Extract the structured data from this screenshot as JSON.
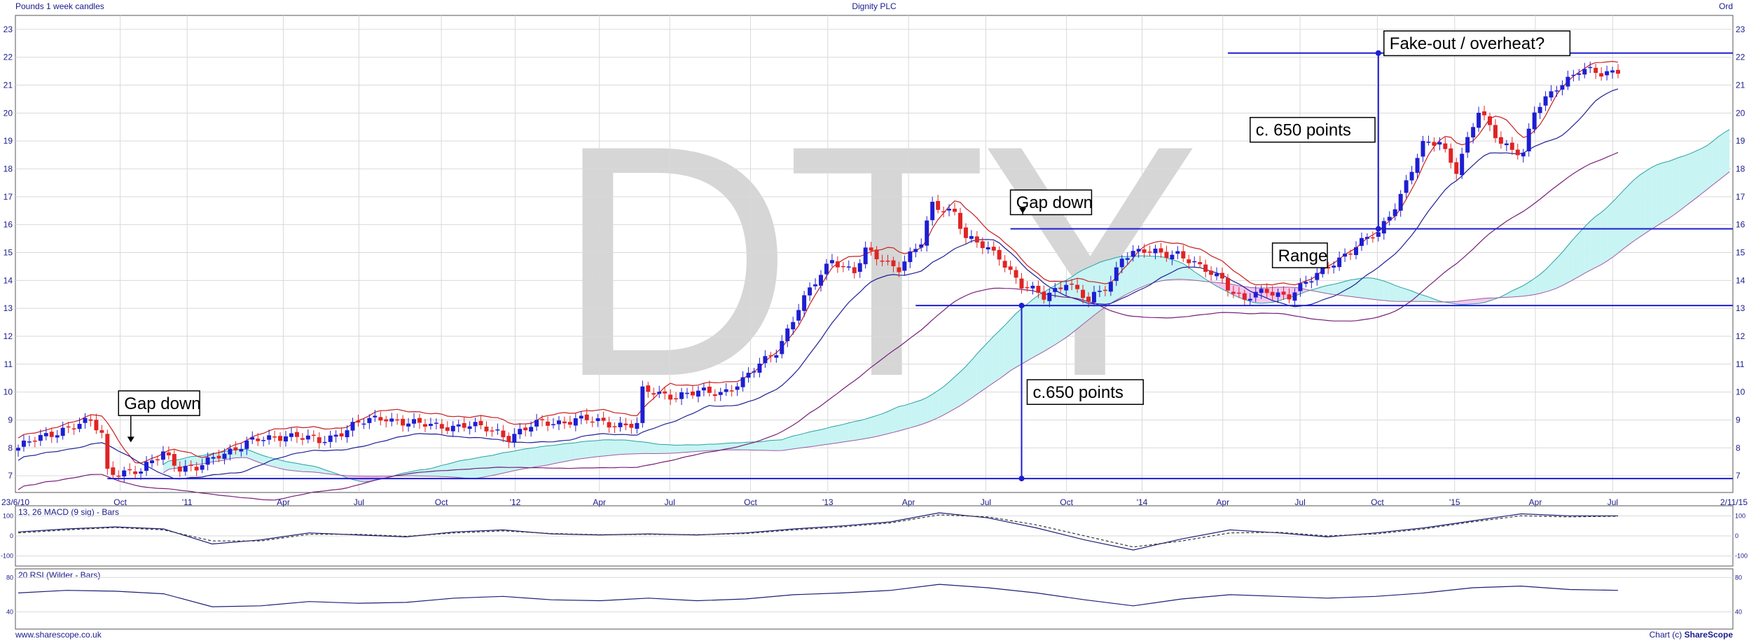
{
  "header": {
    "left": "Pounds 1 week candles",
    "center": "Dignity PLC",
    "right": "Ord"
  },
  "footer": {
    "left": "www.sharescope.co.uk",
    "right_prefix": "Chart (c) ",
    "right_brand": "ShareScope"
  },
  "watermark": "DTY",
  "colors": {
    "up": "#1e1ed2",
    "down": "#e02424",
    "axis": "#1a1a8c",
    "grid": "#d9d9d9",
    "level": "#1e1ed2",
    "cloud_bull": "#c8f4f4",
    "cloud_bear": "#f4c8ef",
    "ma_fast": "#c81e1e",
    "ma_mid": "#1e1e96",
    "ma_slow": "#781e78"
  },
  "chart_data": [
    {
      "type": "candlestick",
      "title": "Dignity PLC",
      "yaxis_ticks": [
        7,
        8,
        9,
        10,
        11,
        12,
        13,
        14,
        15,
        16,
        17,
        18,
        19,
        20,
        21,
        22,
        23
      ],
      "ylim": [
        6.4,
        23.5
      ],
      "xaxis_ticks": [
        "23/6/10",
        "Oct",
        "'11",
        "Apr",
        "Jul",
        "Oct",
        "'12",
        "Apr",
        "Jul",
        "Oct",
        "'13",
        "Apr",
        "Jul",
        "Oct",
        "'14",
        "Apr",
        "Jul",
        "Oct",
        "'15",
        "Apr",
        "Jul",
        "2/11/15"
      ],
      "grid": true,
      "close_keypoints": [
        [
          0,
          8.0
        ],
        [
          8,
          8.7
        ],
        [
          13,
          8.9
        ],
        [
          15,
          8.5
        ],
        [
          16,
          7.2
        ],
        [
          22,
          7.1
        ],
        [
          26,
          7.9
        ],
        [
          29,
          7.3
        ],
        [
          32,
          7.2
        ],
        [
          36,
          7.8
        ],
        [
          42,
          8.2
        ],
        [
          48,
          8.5
        ],
        [
          54,
          8.2
        ],
        [
          60,
          8.8
        ],
        [
          66,
          9.1
        ],
        [
          72,
          8.8
        ],
        [
          80,
          8.8
        ],
        [
          86,
          8.6
        ],
        [
          88,
          8.4
        ],
        [
          94,
          8.9
        ],
        [
          100,
          9.0
        ],
        [
          106,
          8.9
        ],
        [
          111,
          8.8
        ],
        [
          112,
          10.0
        ],
        [
          118,
          9.9
        ],
        [
          126,
          10.0
        ],
        [
          130,
          10.4
        ],
        [
          136,
          11.5
        ],
        [
          140,
          13.0
        ],
        [
          146,
          14.8
        ],
        [
          150,
          14.3
        ],
        [
          152,
          15.0
        ],
        [
          158,
          14.5
        ],
        [
          162,
          15.3
        ],
        [
          164,
          16.7
        ],
        [
          168,
          16.5
        ],
        [
          170,
          15.5
        ],
        [
          176,
          14.9
        ],
        [
          180,
          13.8
        ],
        [
          184,
          13.4
        ],
        [
          188,
          14.0
        ],
        [
          192,
          13.2
        ],
        [
          196,
          14.0
        ],
        [
          198,
          14.9
        ],
        [
          202,
          15.0
        ],
        [
          208,
          15.0
        ],
        [
          212,
          14.4
        ],
        [
          216,
          14.1
        ],
        [
          218,
          13.6
        ],
        [
          220,
          13.3
        ],
        [
          224,
          13.6
        ],
        [
          228,
          13.5
        ],
        [
          232,
          14.0
        ],
        [
          236,
          14.7
        ],
        [
          240,
          15.2
        ],
        [
          244,
          15.7
        ],
        [
          248,
          17.1
        ],
        [
          252,
          18.8
        ],
        [
          255,
          19.0
        ],
        [
          258,
          18.0
        ],
        [
          262,
          20.0
        ],
        [
          266,
          19.0
        ],
        [
          270,
          18.5
        ],
        [
          272,
          20.0
        ],
        [
          276,
          21.0
        ],
        [
          280,
          21.5
        ],
        [
          284,
          21.4
        ],
        [
          287,
          21.6
        ]
      ],
      "last_week_index": 287,
      "moving_averages": [
        {
          "name": "fast",
          "offset": 0.35,
          "lag": 5
        },
        {
          "name": "mid",
          "offset": -0.45,
          "lag": 12
        },
        {
          "name": "slow",
          "offset": -1.5,
          "lag": 30
        }
      ],
      "levels": [
        {
          "y": 22.15,
          "from_week": 217
        },
        {
          "y": 15.85,
          "from_week": 178
        },
        {
          "y": 13.1,
          "from_week": 161
        },
        {
          "y": 6.9,
          "from_week": 16
        }
      ],
      "measures": [
        {
          "week": 180,
          "from": 6.9,
          "to": 13.1
        },
        {
          "week": 244,
          "from": 15.85,
          "to": 22.15
        }
      ],
      "annotations": [
        {
          "id": "gap-down-1",
          "text": "Gap down",
          "week": 18,
          "y": 9.6,
          "arrow_to": 8.2
        },
        {
          "id": "gap-down-2",
          "text": "Gap down",
          "week": 178,
          "y": 16.8,
          "arrow_to": 16.4
        },
        {
          "id": "measure-lower",
          "text": "c.650 points",
          "week": 181,
          "y": 10.0
        },
        {
          "id": "measure-upper",
          "text": "c. 650 points",
          "week": 221,
          "y": 19.4
        },
        {
          "id": "range",
          "text": "Range",
          "week": 225,
          "y": 14.9
        },
        {
          "id": "fakeout",
          "text": "Fake-out / overheat?",
          "week": 245,
          "y": 22.5
        }
      ]
    },
    {
      "type": "line",
      "title": "13, 26 MACD (9 sig) - Bars",
      "yaxis_ticks": [
        100,
        0,
        -100
      ],
      "ylim": [
        -150,
        150
      ],
      "series": [
        {
          "name": "MACD",
          "values": [
            20,
            35,
            45,
            35,
            -40,
            -20,
            15,
            5,
            -5,
            20,
            30,
            10,
            5,
            10,
            5,
            15,
            35,
            50,
            70,
            115,
            90,
            40,
            -20,
            -70,
            -15,
            30,
            15,
            -5,
            15,
            40,
            75,
            110,
            100,
            100
          ]
        },
        {
          "name": "signal",
          "values": [
            15,
            30,
            42,
            30,
            -25,
            -25,
            8,
            8,
            -2,
            15,
            25,
            12,
            6,
            8,
            6,
            12,
            30,
            45,
            65,
            105,
            95,
            55,
            0,
            -55,
            -25,
            15,
            18,
            0,
            10,
            35,
            70,
            100,
            95,
            98
          ]
        }
      ]
    },
    {
      "type": "line",
      "title": "20 RSI (Wilder - Bars)",
      "yaxis_ticks": [
        80,
        40
      ],
      "ylim": [
        20,
        90
      ],
      "series": [
        {
          "name": "RSI",
          "values": [
            62,
            65,
            64,
            61,
            46,
            47,
            52,
            50,
            51,
            56,
            58,
            54,
            53,
            56,
            53,
            55,
            60,
            62,
            65,
            72,
            68,
            62,
            54,
            47,
            55,
            60,
            58,
            56,
            58,
            62,
            68,
            70,
            66,
            65
          ]
        }
      ]
    }
  ]
}
